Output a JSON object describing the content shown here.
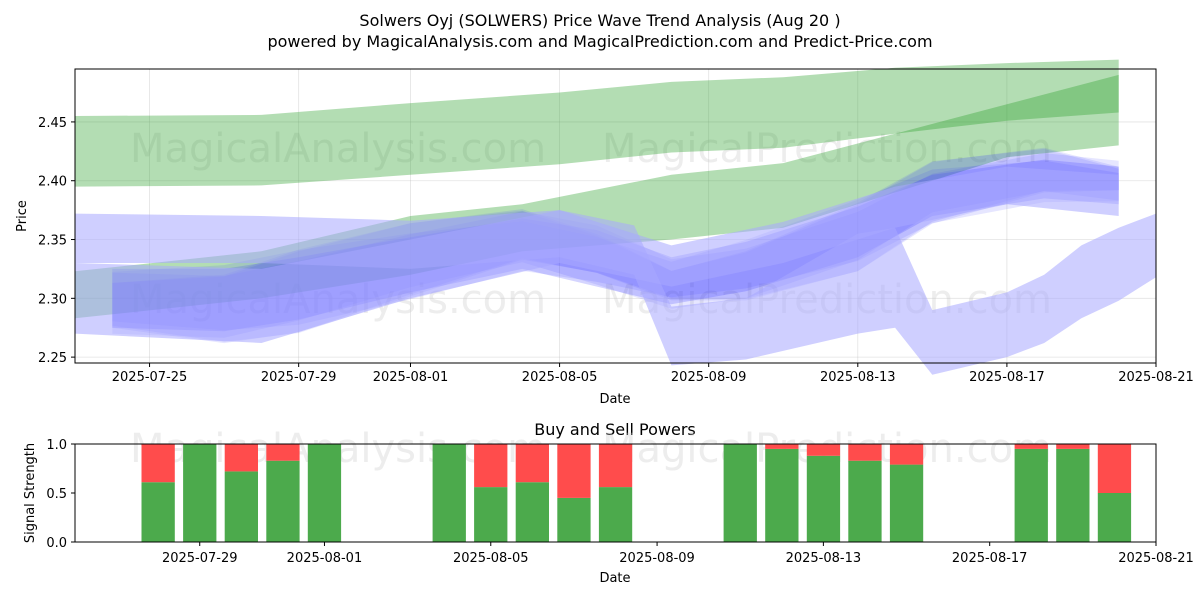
{
  "chart_data": [
    {
      "type": "area",
      "title": "Solwers Oyj (SOLWERS) Price Wave Trend Analysis (Aug 20 )",
      "subtitle": "powered by MagicalAnalysis.com and MagicalPrediction.com and Predict-Price.com",
      "xlabel": "Date",
      "ylabel": "Price",
      "xlim": [
        "2025-07-23",
        "2025-08-21"
      ],
      "ylim": [
        2.245,
        2.495
      ],
      "x_ticks": [
        "2025-07-25",
        "2025-07-29",
        "2025-08-01",
        "2025-08-05",
        "2025-08-09",
        "2025-08-13",
        "2025-08-17",
        "2025-08-21"
      ],
      "y_ticks": [
        2.25,
        2.3,
        2.35,
        2.4,
        2.45
      ],
      "grid": true,
      "colors": {
        "green": "#2ca02c",
        "blue": "#4040ff",
        "light_blue": "#a8a8ff"
      },
      "series": [
        {
          "color": "green",
          "x": [
            "2025-07-23",
            "2025-07-28",
            "2025-08-01",
            "2025-08-05",
            "2025-08-08",
            "2025-08-11",
            "2025-08-14",
            "2025-08-17",
            "2025-08-20"
          ],
          "lower": [
            2.395,
            2.396,
            2.405,
            2.414,
            2.424,
            2.428,
            2.44,
            2.451,
            2.458
          ],
          "upper": [
            2.455,
            2.456,
            2.466,
            2.475,
            2.484,
            2.488,
            2.496,
            2.5,
            2.503
          ]
        },
        {
          "color": "green",
          "x": [
            "2025-07-23",
            "2025-07-28",
            "2025-08-01",
            "2025-08-04",
            "2025-08-08",
            "2025-08-11",
            "2025-08-14",
            "2025-08-17",
            "2025-08-20"
          ],
          "lower": [
            2.283,
            2.3,
            2.32,
            2.34,
            2.35,
            2.36,
            2.39,
            2.42,
            2.43
          ],
          "upper": [
            2.323,
            2.34,
            2.37,
            2.38,
            2.405,
            2.415,
            2.44,
            2.465,
            2.49
          ]
        },
        {
          "color": "blue",
          "x": [
            "2025-07-24",
            "2025-07-27",
            "2025-07-29",
            "2025-08-01",
            "2025-08-04",
            "2025-08-06",
            "2025-08-08",
            "2025-08-10",
            "2025-08-13",
            "2025-08-15",
            "2025-08-18",
            "2025-08-20"
          ],
          "lower": [
            2.275,
            2.272,
            2.282,
            2.305,
            2.325,
            2.31,
            2.295,
            2.306,
            2.335,
            2.37,
            2.385,
            2.38
          ],
          "upper": [
            2.325,
            2.325,
            2.335,
            2.352,
            2.368,
            2.358,
            2.335,
            2.348,
            2.378,
            2.405,
            2.418,
            2.412
          ]
        },
        {
          "color": "light_blue",
          "x": [
            "2025-07-23",
            "2025-07-28",
            "2025-08-01",
            "2025-08-05",
            "2025-08-08",
            "2025-08-11",
            "2025-08-14",
            "2025-08-17",
            "2025-08-20"
          ],
          "lower": [
            2.27,
            2.262,
            2.3,
            2.33,
            2.31,
            2.33,
            2.36,
            2.38,
            2.37
          ],
          "upper": [
            2.33,
            2.325,
            2.35,
            2.375,
            2.345,
            2.365,
            2.395,
            2.412,
            2.405
          ]
        },
        {
          "color": "light_blue",
          "x": [
            "2025-07-23",
            "2025-07-28",
            "2025-08-01",
            "2025-08-05",
            "2025-08-07",
            "2025-08-08",
            "2025-08-10",
            "2025-08-13",
            "2025-08-14",
            "2025-08-15",
            "2025-08-17",
            "2025-08-18",
            "2025-08-19",
            "2025-08-20",
            "2025-08-21"
          ],
          "lower": [
            2.33,
            2.33,
            2.325,
            2.335,
            2.32,
            2.243,
            2.248,
            2.27,
            2.275,
            2.235,
            2.25,
            2.262,
            2.283,
            2.298,
            2.318
          ],
          "upper": [
            2.372,
            2.37,
            2.366,
            2.375,
            2.362,
            2.293,
            2.3,
            2.355,
            2.36,
            2.29,
            2.305,
            2.32,
            2.345,
            2.36,
            2.372
          ]
        }
      ]
    },
    {
      "type": "bar",
      "title": "Buy and Sell Powers",
      "xlabel": "Date",
      "ylabel": "Signal Strength",
      "ylim": [
        0.0,
        1.0
      ],
      "y_ticks": [
        0.0,
        0.5,
        1.0
      ],
      "x_ticks": [
        "2025-07-29",
        "2025-08-01",
        "2025-08-05",
        "2025-08-09",
        "2025-08-13",
        "2025-08-17",
        "2025-08-21"
      ],
      "xlim": [
        "2025-07-26",
        "2025-08-21"
      ],
      "colors": {
        "buy": "#4caa4c",
        "sell": "#ff4c4c"
      },
      "categories": [
        "2025-07-28",
        "2025-07-29",
        "2025-07-30",
        "2025-07-31",
        "2025-08-01",
        "2025-08-04",
        "2025-08-05",
        "2025-08-06",
        "2025-08-07",
        "2025-08-08",
        "2025-08-11",
        "2025-08-12",
        "2025-08-13",
        "2025-08-14",
        "2025-08-15",
        "2025-08-18",
        "2025-08-19",
        "2025-08-20"
      ],
      "series": [
        {
          "name": "buy",
          "values": [
            0.61,
            1.0,
            0.72,
            0.83,
            1.0,
            1.0,
            0.56,
            0.61,
            0.45,
            0.56,
            1.0,
            0.95,
            0.88,
            0.83,
            0.79,
            0.95,
            0.95,
            0.5
          ]
        },
        {
          "name": "sell",
          "values": [
            0.39,
            0.0,
            0.28,
            0.17,
            0.0,
            0.0,
            0.44,
            0.39,
            0.55,
            0.44,
            0.0,
            0.05,
            0.12,
            0.17,
            0.21,
            0.05,
            0.05,
            0.5
          ]
        }
      ]
    }
  ],
  "watermarks": [
    "MagicalAnalysis.com",
    "MagicalPrediction.com"
  ]
}
